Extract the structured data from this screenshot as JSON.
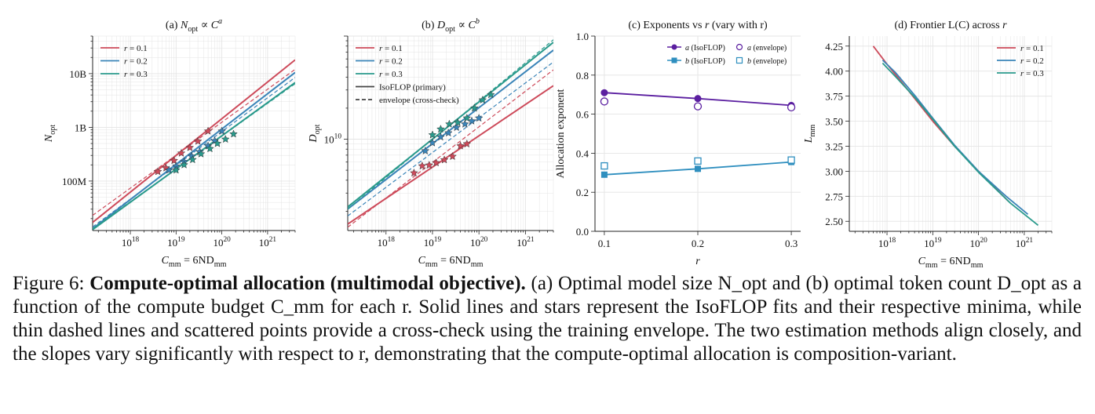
{
  "colors": {
    "r01": "#cd4a5a",
    "r02": "#3a84b8",
    "r03": "#2a9a8c",
    "a": "#5b1fa0",
    "b": "#2f8fbf"
  },
  "figure": {
    "panels": {
      "a": {
        "title": "(a) N_opt ∝ C^a",
        "xlabel": "C_mm = 6ND_mm",
        "ylabel": "N_opt",
        "ytick_labels": [
          "100M",
          "1B",
          "10B"
        ],
        "legend": [
          "r = 0.1",
          "r = 0.2",
          "r = 0.3"
        ]
      },
      "b": {
        "title": "(b) D_opt ∝ C^b",
        "xlabel": "C_mm = 6ND_mm",
        "ylabel": "D_opt",
        "ytick_labels": [
          "10^10"
        ],
        "legend": [
          "r = 0.1",
          "r = 0.2",
          "r = 0.3",
          "IsoFLOP (primary)",
          "envelope (cross-check)"
        ]
      },
      "c": {
        "title": "(c) Exponents vs r (vary with r)",
        "xlabel": "r",
        "ylabel": "Allocation exponent",
        "legend": [
          "a (IsoFLOP)",
          "a (envelope)",
          "b (IsoFLOP)",
          "b (envelope)"
        ]
      },
      "d": {
        "title": "(d) Frontier L(C) across r",
        "xlabel": "C_mm = 6ND_mm",
        "ylabel": "L_mm",
        "legend": [
          "r = 0.1",
          "r = 0.2",
          "r = 0.3"
        ]
      }
    },
    "xtick_labels": [
      "10^18",
      "10^19",
      "10^20",
      "10^21"
    ]
  },
  "chart_data": [
    {
      "type": "line",
      "xscale": "log",
      "yscale": "log",
      "xlim": [
        1.5e+17,
        4e+21
      ],
      "ylim": [
        12000000.0,
        50000000000.0
      ],
      "fits": [
        {
          "r": 0.1,
          "style": "solid",
          "x": [
            1.5e+17,
            4e+21
          ],
          "y": [
            17000000.0,
            18000000000.0
          ]
        },
        {
          "r": 0.1,
          "style": "dashed",
          "x": [
            1.5e+17,
            4e+21
          ],
          "y": [
            23000000.0,
            12000000000.0
          ]
        },
        {
          "r": 0.2,
          "style": "solid",
          "x": [
            1.5e+17,
            4e+21
          ],
          "y": [
            13000000.0,
            10500000000.0
          ]
        },
        {
          "r": 0.2,
          "style": "dashed",
          "x": [
            1.5e+17,
            4e+21
          ],
          "y": [
            14000000.0,
            8500000000.0
          ]
        },
        {
          "r": 0.3,
          "style": "solid",
          "x": [
            1.5e+17,
            4e+21
          ],
          "y": [
            12500000.0,
            6800000000.0
          ]
        },
        {
          "r": 0.3,
          "style": "dashed",
          "x": [
            1.5e+17,
            4e+21
          ],
          "y": [
            13000000.0,
            6500000000.0
          ]
        }
      ],
      "minima": [
        {
          "r": 0.1,
          "x": [
            4e+18,
            6e+18,
            9e+18,
            1.3e+19,
            2e+19,
            3e+19,
            5e+19
          ],
          "y": [
            150000000.0,
            175000000.0,
            240000000.0,
            330000000.0,
            420000000.0,
            550000000.0,
            850000000.0
          ]
        },
        {
          "r": 0.2,
          "x": [
            7e+18,
            1e+19,
            1.5e+19,
            2.2e+19,
            3.3e+19,
            5e+19,
            7e+19,
            1e+20
          ],
          "y": [
            160000000.0,
            190000000.0,
            230000000.0,
            290000000.0,
            350000000.0,
            450000000.0,
            560000000.0,
            850000000.0
          ]
        },
        {
          "r": 0.3,
          "x": [
            1e+19,
            1.5e+19,
            2.3e+19,
            3.5e+19,
            5.5e+19,
            8e+19,
            1.2e+20,
            1.8e+20
          ],
          "y": [
            160000000.0,
            200000000.0,
            250000000.0,
            320000000.0,
            400000000.0,
            500000000.0,
            600000000.0,
            750000000.0
          ]
        }
      ]
    },
    {
      "type": "line",
      "xscale": "log",
      "yscale": "log",
      "xlim": [
        1.5e+17,
        4e+21
      ],
      "ylim": [
        1300000000.0,
        100000000000.0
      ],
      "fits": [
        {
          "r": 0.1,
          "style": "solid",
          "x": [
            1.5e+17,
            4e+21
          ],
          "y": [
            1500000000.0,
            33000000000.0
          ]
        },
        {
          "r": 0.1,
          "style": "dashed",
          "x": [
            1.5e+17,
            4e+21
          ],
          "y": [
            1400000000.0,
            47000000000.0
          ]
        },
        {
          "r": 0.2,
          "style": "solid",
          "x": [
            1.5e+17,
            4e+21
          ],
          "y": [
            2100000000.0,
            73000000000.0
          ]
        },
        {
          "r": 0.2,
          "style": "dashed",
          "x": [
            1.5e+17,
            4e+21
          ],
          "y": [
            1800000000.0,
            56000000000.0
          ]
        },
        {
          "r": 0.3,
          "style": "solid",
          "x": [
            1.5e+17,
            4e+21
          ],
          "y": [
            2200000000.0,
            87000000000.0
          ]
        },
        {
          "r": 0.3,
          "style": "dashed",
          "x": [
            1.5e+17,
            4e+21
          ],
          "y": [
            2100000000.0,
            92000000000.0
          ]
        }
      ],
      "minima": [
        {
          "r": 0.1,
          "x": [
            4e+18,
            6e+18,
            8.5e+18,
            1.2e+19,
            1.8e+19,
            2.7e+19,
            4e+19,
            5.5e+19
          ],
          "y": [
            4700000000.0,
            5500000000.0,
            5600000000.0,
            5900000000.0,
            6300000000.0,
            6800000000.0,
            8600000000.0,
            9000000000.0
          ]
        },
        {
          "r": 0.2,
          "x": [
            7e+18,
            1e+19,
            1.5e+19,
            2.2e+19,
            3.3e+19,
            5e+19,
            7e+19,
            1e+20
          ],
          "y": [
            7700000000.0,
            9200000000.0,
            10500000000.0,
            11500000000.0,
            13000000000.0,
            14000000000.0,
            15000000000.0,
            16000000000.0
          ]
        },
        {
          "r": 0.3,
          "x": [
            1e+19,
            1.5e+19,
            2.3e+19,
            3.5e+19,
            5.5e+19,
            8e+19,
            1.2e+20,
            1.8e+20
          ],
          "y": [
            11000000000.0,
            12500000000.0,
            14000000000.0,
            14500000000.0,
            16000000000.0,
            20000000000.0,
            24000000000.0,
            27000000000.0
          ]
        }
      ]
    },
    {
      "type": "line",
      "xlim": [
        0.09,
        0.31
      ],
      "ylim": [
        0.0,
        1.0
      ],
      "xticks": [
        0.1,
        0.2,
        0.3
      ],
      "yticks": [
        0.0,
        0.2,
        0.4,
        0.6,
        0.8,
        1.0
      ],
      "x": [
        0.1,
        0.2,
        0.3
      ],
      "series": [
        {
          "name": "a (IsoFLOP)",
          "values": [
            0.71,
            0.68,
            0.645
          ],
          "marker": "filled-circle"
        },
        {
          "name": "a (envelope)",
          "values": [
            0.665,
            0.64,
            0.635
          ],
          "marker": "open-circle"
        },
        {
          "name": "b (IsoFLOP)",
          "values": [
            0.29,
            0.32,
            0.355
          ],
          "marker": "filled-square"
        },
        {
          "name": "b (envelope)",
          "values": [
            0.335,
            0.36,
            0.365
          ],
          "marker": "open-square"
        }
      ]
    },
    {
      "type": "line",
      "xscale": "log",
      "xlim": [
        1.5e+17,
        4e+21
      ],
      "ylim": [
        2.4,
        4.35
      ],
      "yticks": [
        2.5,
        2.75,
        3.0,
        3.25,
        3.5,
        3.75,
        4.0,
        4.25
      ],
      "series": [
        {
          "name": "r = 0.1",
          "x": [
            5e+17,
            1e+18,
            3e+18,
            1e+19,
            3e+19,
            1e+20,
            4.5e+20
          ],
          "values": [
            4.25,
            4.07,
            3.8,
            3.5,
            3.25,
            3.0,
            2.7
          ]
        },
        {
          "name": "r = 0.2",
          "x": [
            8e+17,
            1.5e+18,
            4e+18,
            1e+19,
            3e+19,
            1e+20,
            4e+20,
            1.2e+21
          ],
          "values": [
            4.11,
            3.99,
            3.76,
            3.53,
            3.26,
            3.0,
            2.75,
            2.57
          ]
        },
        {
          "name": "r = 0.3",
          "x": [
            8e+17,
            1.5e+18,
            4e+18,
            1e+19,
            3e+19,
            1e+20,
            5e+20,
            2e+21
          ],
          "values": [
            4.08,
            3.95,
            3.74,
            3.52,
            3.25,
            2.99,
            2.68,
            2.46
          ]
        }
      ]
    }
  ],
  "caption": {
    "label": "Figure 6: ",
    "bold": "Compute-optimal allocation (multimodal objective).",
    "text": " (a) Optimal model size N_opt and (b) optimal token count D_opt as a function of the compute budget C_mm for each r. Solid lines and stars represent the IsoFLOP fits and their respective minima, while thin dashed lines and scattered points provide a cross-check using the training envelope. The two estimation methods align closely, and the slopes vary significantly with respect to r, demonstrating that the compute-optimal allocation is composition-variant."
  }
}
